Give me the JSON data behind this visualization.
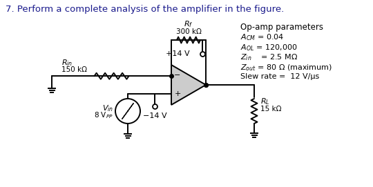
{
  "title": "7. Perform a complete analysis of the amplifier in the figure.",
  "title_color": "#1a1a8c",
  "background": "#ffffff",
  "param_lines": [
    "Op-amp parameters",
    "ACM = 0.04",
    "AOL = 120,000",
    "Zin   = 2.5 MΩ",
    "Zout = 80 Ω (maximum)",
    "Slew rate =  12 V/μs"
  ],
  "Rf_label1": "Rf",
  "Rf_label2": "300 kΩ",
  "Rin_label1": "Rin",
  "Rin_label2": "150 kΩ",
  "RL_label1": "RL",
  "RL_label2": "15 kΩ",
  "Vin_label1": "Vin",
  "Vin_label2": "8 VPP",
  "Vpos": "+14 V",
  "Vneg": "-14 V"
}
